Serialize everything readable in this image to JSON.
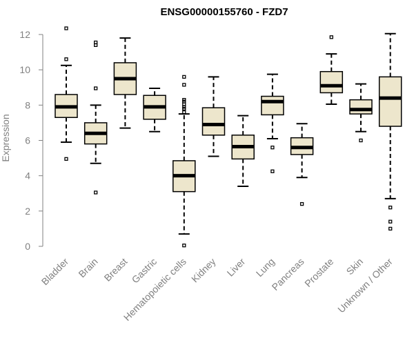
{
  "chart_data": {
    "type": "boxplot",
    "title": "ENSG00000155760 - FZD7",
    "xlabel": "",
    "ylabel": "Expression",
    "ylim": [
      0,
      12
    ],
    "yticks": [
      0,
      2,
      4,
      6,
      8,
      10,
      12
    ],
    "grid": false,
    "box_fill": "#ede6cc",
    "categories": [
      "Bladder",
      "Brain",
      "Breast",
      "Gastric",
      "Hematopoietic cells",
      "Kidney",
      "Liver",
      "Lung",
      "Pancreas",
      "Prostate",
      "Skin",
      "Unknown / Other"
    ],
    "boxes": [
      {
        "name": "Bladder",
        "whisker_low": 5.9,
        "q1": 7.3,
        "median": 7.9,
        "q3": 8.6,
        "whisker_high": 10.25,
        "outliers": [
          4.95,
          10.6,
          12.35
        ]
      },
      {
        "name": "Brain",
        "whisker_low": 4.7,
        "q1": 5.8,
        "median": 6.4,
        "q3": 7.0,
        "whisker_high": 8.0,
        "outliers": [
          3.05,
          8.95,
          11.4,
          11.55
        ]
      },
      {
        "name": "Breast",
        "whisker_low": 6.7,
        "q1": 8.6,
        "median": 9.5,
        "q3": 10.4,
        "whisker_high": 11.8,
        "outliers": []
      },
      {
        "name": "Gastric",
        "whisker_low": 6.5,
        "q1": 7.2,
        "median": 7.9,
        "q3": 8.55,
        "whisker_high": 8.95,
        "outliers": []
      },
      {
        "name": "Hematopoietic cells",
        "whisker_low": 0.7,
        "q1": 3.1,
        "median": 4.0,
        "q3": 4.85,
        "whisker_high": 7.5,
        "outliers": [
          0.05,
          7.6,
          7.8,
          7.9,
          8.05,
          8.2,
          8.3,
          9.15,
          9.6
        ]
      },
      {
        "name": "Kidney",
        "whisker_low": 5.1,
        "q1": 6.3,
        "median": 6.9,
        "q3": 7.85,
        "whisker_high": 9.6,
        "outliers": []
      },
      {
        "name": "Liver",
        "whisker_low": 3.4,
        "q1": 4.95,
        "median": 5.65,
        "q3": 6.3,
        "whisker_high": 7.4,
        "outliers": []
      },
      {
        "name": "Lung",
        "whisker_low": 6.1,
        "q1": 7.45,
        "median": 8.2,
        "q3": 8.5,
        "whisker_high": 9.75,
        "outliers": [
          4.25,
          5.6
        ]
      },
      {
        "name": "Pancreas",
        "whisker_low": 3.9,
        "q1": 5.2,
        "median": 5.6,
        "q3": 6.15,
        "whisker_high": 6.95,
        "outliers": [
          2.4
        ]
      },
      {
        "name": "Prostate",
        "whisker_low": 8.05,
        "q1": 8.7,
        "median": 9.1,
        "q3": 9.9,
        "whisker_high": 10.9,
        "outliers": [
          11.85
        ]
      },
      {
        "name": "Skin",
        "whisker_low": 6.5,
        "q1": 7.5,
        "median": 7.75,
        "q3": 8.3,
        "whisker_high": 9.2,
        "outliers": [
          6.0
        ]
      },
      {
        "name": "Unknown / Other",
        "whisker_low": 2.7,
        "q1": 6.8,
        "median": 8.4,
        "q3": 9.6,
        "whisker_high": 12.05,
        "outliers": [
          1.0,
          1.4,
          2.2
        ]
      }
    ]
  }
}
